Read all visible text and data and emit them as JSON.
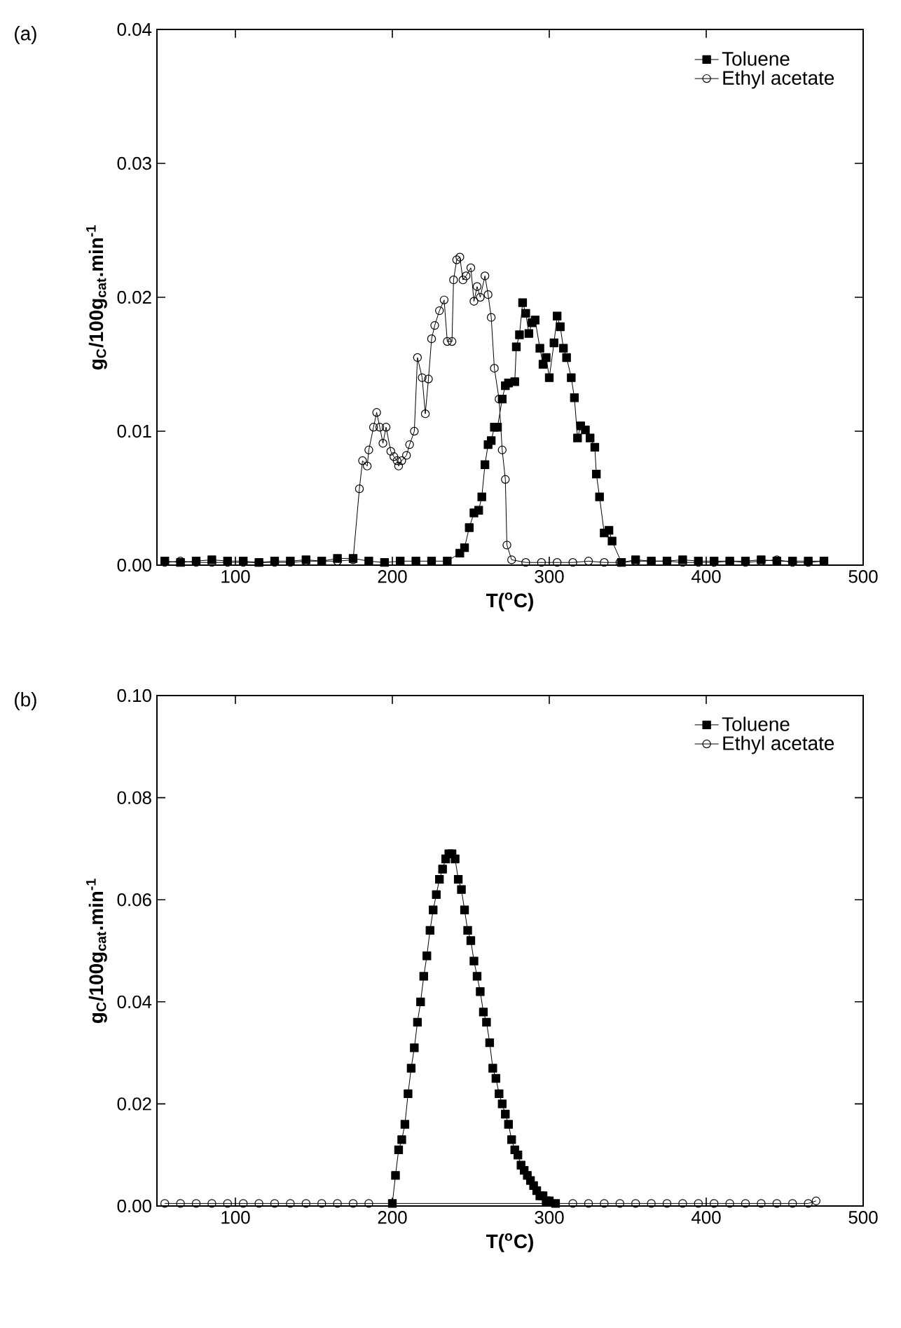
{
  "chart_data": [
    {
      "type": "line",
      "title": "(a)",
      "xlabel": "T($^{o}$C)",
      "ylabel": "g$_{C}$/100g$_{cat}$.min$^{-1}$",
      "xlim": [
        50,
        500
      ],
      "xticks": [
        100,
        200,
        300,
        400,
        500
      ],
      "ylim": [
        0,
        0.04
      ],
      "yticks": [
        {
          "value": 0,
          "label": "0.00"
        },
        {
          "value": 0.01,
          "label": "0.01"
        },
        {
          "value": 0.02,
          "label": "0.02"
        },
        {
          "value": 0.03,
          "label": "0.03"
        },
        {
          "value": 0.04,
          "label": "0.04"
        }
      ],
      "legend": "top right",
      "grid": false,
      "line_style": "solid",
      "series": [
        {
          "name": "Toluene",
          "color": "#000000",
          "marker": "square",
          "x": [
            55,
            65,
            75,
            85,
            95,
            105,
            115,
            125,
            135,
            145,
            155,
            165,
            175,
            185,
            195,
            205,
            215,
            225,
            235,
            243,
            246,
            249,
            252,
            255,
            257,
            259,
            261,
            263,
            265,
            267,
            270,
            272,
            274,
            278,
            279,
            281,
            283,
            285,
            287,
            289,
            291,
            294,
            296,
            298,
            300,
            303,
            305,
            307,
            309,
            311,
            314,
            316,
            318,
            320,
            323,
            326,
            329,
            330,
            332,
            335,
            338,
            340,
            346,
            355,
            365,
            375,
            385,
            395,
            405,
            415,
            425,
            435,
            445,
            455,
            465,
            475
          ],
          "values": [
            0.0003,
            0.0002,
            0.0003,
            0.0004,
            0.0003,
            0.0003,
            0.0002,
            0.0003,
            0.0003,
            0.0004,
            0.0003,
            0.0005,
            0.0005,
            0.0003,
            0.0002,
            0.0003,
            0.0003,
            0.0003,
            0.0003,
            0.0009,
            0.0013,
            0.0028,
            0.0039,
            0.0041,
            0.0051,
            0.0075,
            0.009,
            0.0093,
            0.0103,
            0.0103,
            0.0124,
            0.0134,
            0.0136,
            0.0137,
            0.0163,
            0.0172,
            0.0196,
            0.0188,
            0.0173,
            0.0181,
            0.0183,
            0.0162,
            0.015,
            0.0155,
            0.014,
            0.0166,
            0.0186,
            0.0178,
            0.0162,
            0.0155,
            0.014,
            0.0125,
            0.0095,
            0.0104,
            0.0101,
            0.0095,
            0.0088,
            0.0068,
            0.0051,
            0.0024,
            0.0026,
            0.0018,
            0.0002,
            0.0004,
            0.0003,
            0.0003,
            0.0004,
            0.0003,
            0.0003,
            0.0003,
            0.0003,
            0.0004,
            0.0003,
            0.0003,
            0.0003,
            0.0003
          ]
        },
        {
          "name": "Ethyl acetate",
          "color": "#000000",
          "marker": "circle",
          "x": [
            55,
            65,
            75,
            85,
            95,
            105,
            115,
            125,
            135,
            145,
            155,
            165,
            175,
            179,
            181,
            184,
            185,
            188,
            190,
            192,
            194,
            196,
            199,
            201,
            203,
            204,
            206,
            209,
            211,
            214,
            216,
            219,
            221,
            223,
            225,
            227,
            230,
            233,
            235,
            238,
            239,
            241,
            243,
            245,
            247,
            250,
            252,
            254,
            256,
            259,
            261,
            263,
            265,
            268,
            270,
            272,
            273,
            276,
            285,
            295,
            305,
            315,
            325,
            335,
            345,
            355,
            365,
            375,
            385,
            395,
            405,
            415,
            425,
            435,
            445,
            455,
            465,
            475
          ],
          "values": [
            0.0002,
            0.0003,
            0.0002,
            0.0002,
            0.0002,
            0.0002,
            0.0002,
            0.0002,
            0.0002,
            0.0003,
            0.0003,
            0.0003,
            0.0004,
            0.0057,
            0.0078,
            0.0074,
            0.0086,
            0.0103,
            0.0114,
            0.0103,
            0.0091,
            0.0103,
            0.0085,
            0.0081,
            0.0078,
            0.0074,
            0.0078,
            0.0082,
            0.009,
            0.01,
            0.0155,
            0.014,
            0.0113,
            0.0139,
            0.0169,
            0.0179,
            0.019,
            0.0198,
            0.0167,
            0.0167,
            0.0213,
            0.0228,
            0.023,
            0.0213,
            0.0216,
            0.0222,
            0.0197,
            0.0208,
            0.02,
            0.0216,
            0.0202,
            0.0185,
            0.0147,
            0.0124,
            0.0086,
            0.0064,
            0.0015,
            0.0004,
            0.0002,
            0.0002,
            0.0002,
            0.0002,
            0.0003,
            0.0002,
            0.0002,
            0.0003,
            0.0003,
            0.0003,
            0.0002,
            0.0002,
            0.0002,
            0.0003,
            0.0002,
            0.0003,
            0.0004,
            0.0002,
            0.0002,
            0.0003
          ]
        }
      ]
    },
    {
      "type": "line",
      "title": "(b)",
      "xlabel": "T($^{o}$C)",
      "ylabel": "g$_{C}$/100g$_{cat}$.min$^{-1}$",
      "xlim": [
        50,
        500
      ],
      "xticks": [
        100,
        200,
        300,
        400,
        500
      ],
      "ylim": [
        0,
        0.1
      ],
      "yticks": [
        {
          "value": 0,
          "label": "0.00"
        },
        {
          "value": 0.02,
          "label": "0.02"
        },
        {
          "value": 0.04,
          "label": "0.04"
        },
        {
          "value": 0.06,
          "label": "0.06"
        },
        {
          "value": 0.08,
          "label": "0.08"
        },
        {
          "value": 0.1,
          "label": "0.10"
        }
      ],
      "legend": "top right",
      "grid": false,
      "line_style": "solid",
      "series": [
        {
          "name": "Toluene",
          "color": "#000000",
          "marker": "square",
          "x": [
            200,
            202,
            204,
            206,
            208,
            210,
            212,
            214,
            216,
            218,
            220,
            222,
            224,
            226,
            228,
            230,
            232,
            234,
            236,
            238,
            240,
            242,
            244,
            246,
            248,
            250,
            252,
            254,
            256,
            258,
            260,
            262,
            264,
            266,
            268,
            270,
            272,
            274,
            276,
            278,
            280,
            282,
            284,
            286,
            288,
            290,
            292,
            294,
            296,
            298,
            300,
            304
          ],
          "values": [
            0.0005,
            0.006,
            0.011,
            0.013,
            0.016,
            0.022,
            0.027,
            0.031,
            0.036,
            0.04,
            0.045,
            0.049,
            0.054,
            0.058,
            0.061,
            0.064,
            0.066,
            0.068,
            0.069,
            0.069,
            0.068,
            0.064,
            0.062,
            0.058,
            0.054,
            0.052,
            0.048,
            0.045,
            0.042,
            0.038,
            0.036,
            0.032,
            0.027,
            0.025,
            0.022,
            0.02,
            0.018,
            0.016,
            0.013,
            0.011,
            0.01,
            0.008,
            0.007,
            0.006,
            0.005,
            0.004,
            0.003,
            0.002,
            0.002,
            0.001,
            0.001,
            0.0005
          ]
        },
        {
          "name": "Ethyl acetate",
          "color": "#000000",
          "marker": "circle",
          "x": [
            55,
            65,
            75,
            85,
            95,
            105,
            115,
            125,
            135,
            145,
            155,
            165,
            175,
            185,
            195,
            205,
            215,
            225,
            235,
            245,
            255,
            265,
            275,
            285,
            295,
            305,
            315,
            325,
            335,
            345,
            355,
            365,
            375,
            385,
            395,
            405,
            415,
            425,
            435,
            445,
            455,
            465,
            470
          ],
          "values": [
            0.0005,
            0.0005,
            0.0005,
            0.0005,
            0.0005,
            0.0005,
            0.0005,
            0.0005,
            0.0005,
            0.0005,
            0.0005,
            0.0005,
            0.0005,
            0.0005,
            null,
            null,
            null,
            null,
            null,
            null,
            null,
            null,
            null,
            null,
            null,
            null,
            0.0005,
            0.0005,
            0.0005,
            0.0005,
            0.0005,
            0.0005,
            0.0005,
            0.0005,
            0.0005,
            0.0005,
            0.0005,
            0.0005,
            0.0005,
            0.0005,
            0.0005,
            0.0005,
            0.001
          ]
        }
      ]
    }
  ]
}
